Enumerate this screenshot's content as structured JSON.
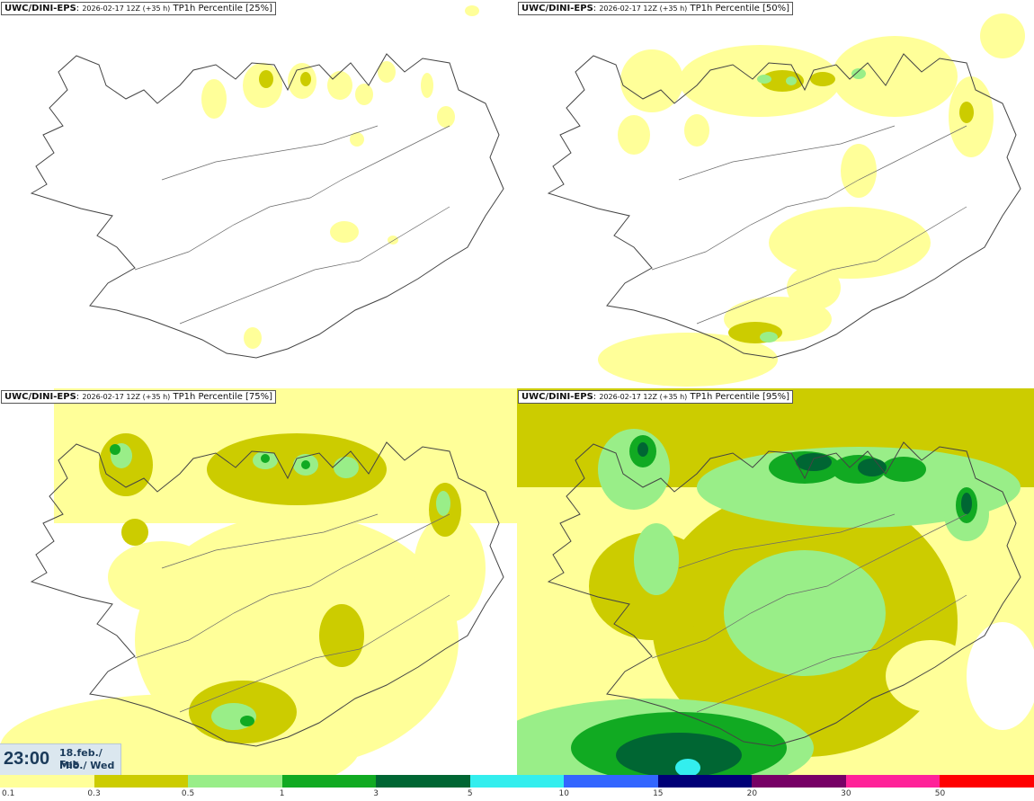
{
  "panels": [
    {
      "model": "UWC/DINI-EPS",
      "run": "2026-02-17 12Z (+35 h)",
      "field": "TP1h Percentile [25%]"
    },
    {
      "model": "UWC/DINI-EPS",
      "run": "2026-02-17 12Z (+35 h)",
      "field": "TP1h Percentile [50%]"
    },
    {
      "model": "UWC/DINI-EPS",
      "run": "2026-02-17 12Z (+35 h)",
      "field": "TP1h Percentile [75%]"
    },
    {
      "model": "UWC/DINI-EPS",
      "run": "2026-02-17 12Z (+35 h)",
      "field": "TP1h Percentile [95%]"
    }
  ],
  "valid_time": {
    "time": "23:00",
    "date": "18.feb./ Feb",
    "weekday": "Mið./ Wed"
  },
  "legend": {
    "ticks": [
      "0.1",
      "0.3",
      "0.5",
      "1",
      "3",
      "5",
      "10",
      "15",
      "20",
      "30",
      "50"
    ],
    "colors": [
      "#ffff99",
      "#cccc00",
      "#99ee88",
      "#11aa22",
      "#006633",
      "#33eeee",
      "#3366ff",
      "#000077",
      "#770066",
      "#ff2299",
      "#ff0000"
    ]
  },
  "colors": {
    "c0": "#ffff99",
    "c1": "#cccc00",
    "c2": "#99ee88",
    "c3": "#11aa22",
    "c4": "#006633",
    "c5": "#33eeee",
    "coast": "#444444"
  }
}
